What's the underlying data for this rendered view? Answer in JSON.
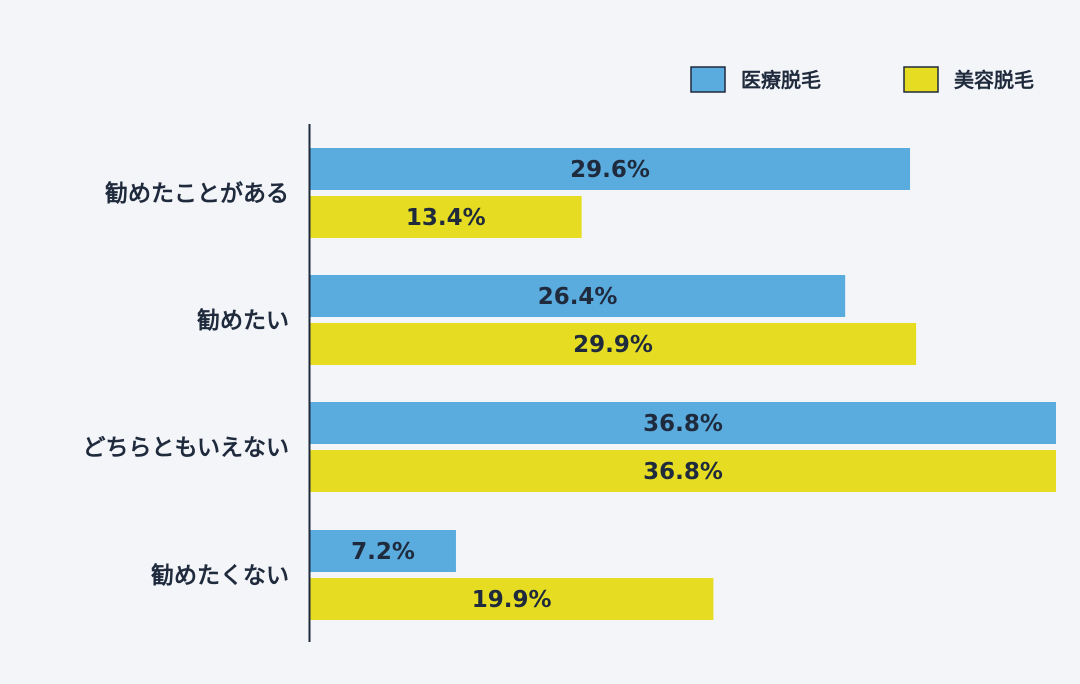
{
  "chart_data": {
    "type": "bar",
    "orientation": "horizontal",
    "title": "",
    "xlabel": "",
    "ylabel": "",
    "xlim": [
      0,
      36.8
    ],
    "grid": false,
    "legend_position": "top-right",
    "categories": [
      "勧めたことがある",
      "勧めたい",
      "どちらともいえない",
      "勧めたくない"
    ],
    "series": [
      {
        "name": "医療脱毛",
        "color": "#5aabde",
        "values": [
          29.6,
          26.4,
          36.8,
          7.2
        ]
      },
      {
        "name": "美容脱毛",
        "color": "#e6dd22",
        "values": [
          13.4,
          29.9,
          36.8,
          19.9
        ]
      }
    ],
    "value_suffix": "%"
  }
}
